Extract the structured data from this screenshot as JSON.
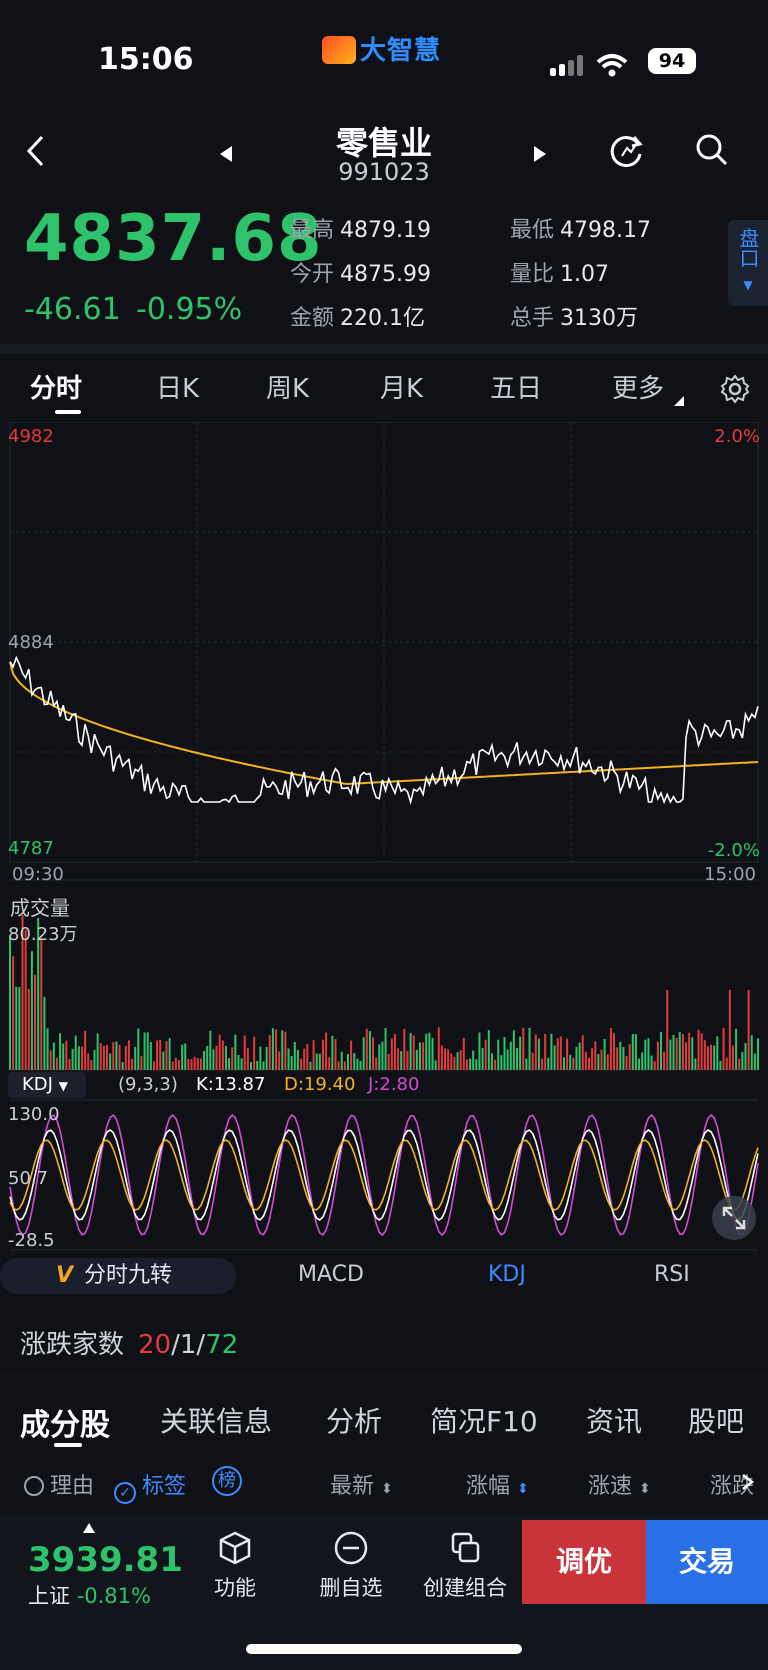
{
  "status_bar": {
    "time": "15:06",
    "battery": "94",
    "app_logo": "大智慧"
  },
  "header": {
    "title": "零售业",
    "code": "991023"
  },
  "quote": {
    "price": "4837.68",
    "change": "-46.61",
    "change_pct": "-0.95%",
    "stats": [
      {
        "label": "最高",
        "value": "4879.19"
      },
      {
        "label": "最低",
        "value": "4798.17"
      },
      {
        "label": "今开",
        "value": "4875.99"
      },
      {
        "label": "量比",
        "value": "1.07"
      },
      {
        "label": "金额",
        "value": "220.1亿"
      },
      {
        "label": "总手",
        "value": "3130万"
      }
    ],
    "pankou": "盘口"
  },
  "chart_tabs": [
    "分时",
    "日K",
    "周K",
    "月K",
    "五日",
    "更多"
  ],
  "chart": {
    "price_top": "4982",
    "price_mid": "4884",
    "price_bottom": "4787",
    "pct_top": "2.0%",
    "pct_bottom": "-2.0%",
    "time_start": "09:30",
    "time_end": "15:00",
    "volume_label": "成交量",
    "volume_value": "80.23万",
    "kdj_name": "KDJ",
    "kdj_params": "(9,3,3)",
    "kdj_k": "K:13.87",
    "kdj_d": "D:19.40",
    "kdj_j": "J:2.80",
    "kdj_top": "130.0",
    "kdj_mid": "50.7",
    "kdj_bottom": "-28.5",
    "colors": {
      "up": "#e23b3b",
      "down": "#2ec36b",
      "price_line": "#ffffff",
      "avg_line": "#f5b21f",
      "k": "#ffffff",
      "d": "#f5b21f",
      "j": "#d64ad6"
    }
  },
  "indicator_tabs": {
    "jiuzhuan": "分时九转",
    "macd": "MACD",
    "kdj": "KDJ",
    "rsi": "RSI"
  },
  "updown": {
    "label": "涨跌家数",
    "up": "20",
    "flat": "1",
    "down": "72",
    "sep1": "/",
    "sep2": "/"
  },
  "bottom_tabs": [
    "成分股",
    "关联信息",
    "分析",
    "简况F10",
    "资讯",
    "股吧"
  ],
  "filters": {
    "reason": "理由",
    "tag": "标签",
    "rank": "榜",
    "latest": "最新",
    "change": "涨幅",
    "speed": "涨速",
    "more": "涨跌"
  },
  "bottom_bar": {
    "index_value": "3939.81",
    "index_name": "上证",
    "index_change": "-0.81%",
    "func": "功能",
    "delete": "删自选",
    "create": "创建组合",
    "tiaoyou": "调优",
    "trade": "交易"
  }
}
